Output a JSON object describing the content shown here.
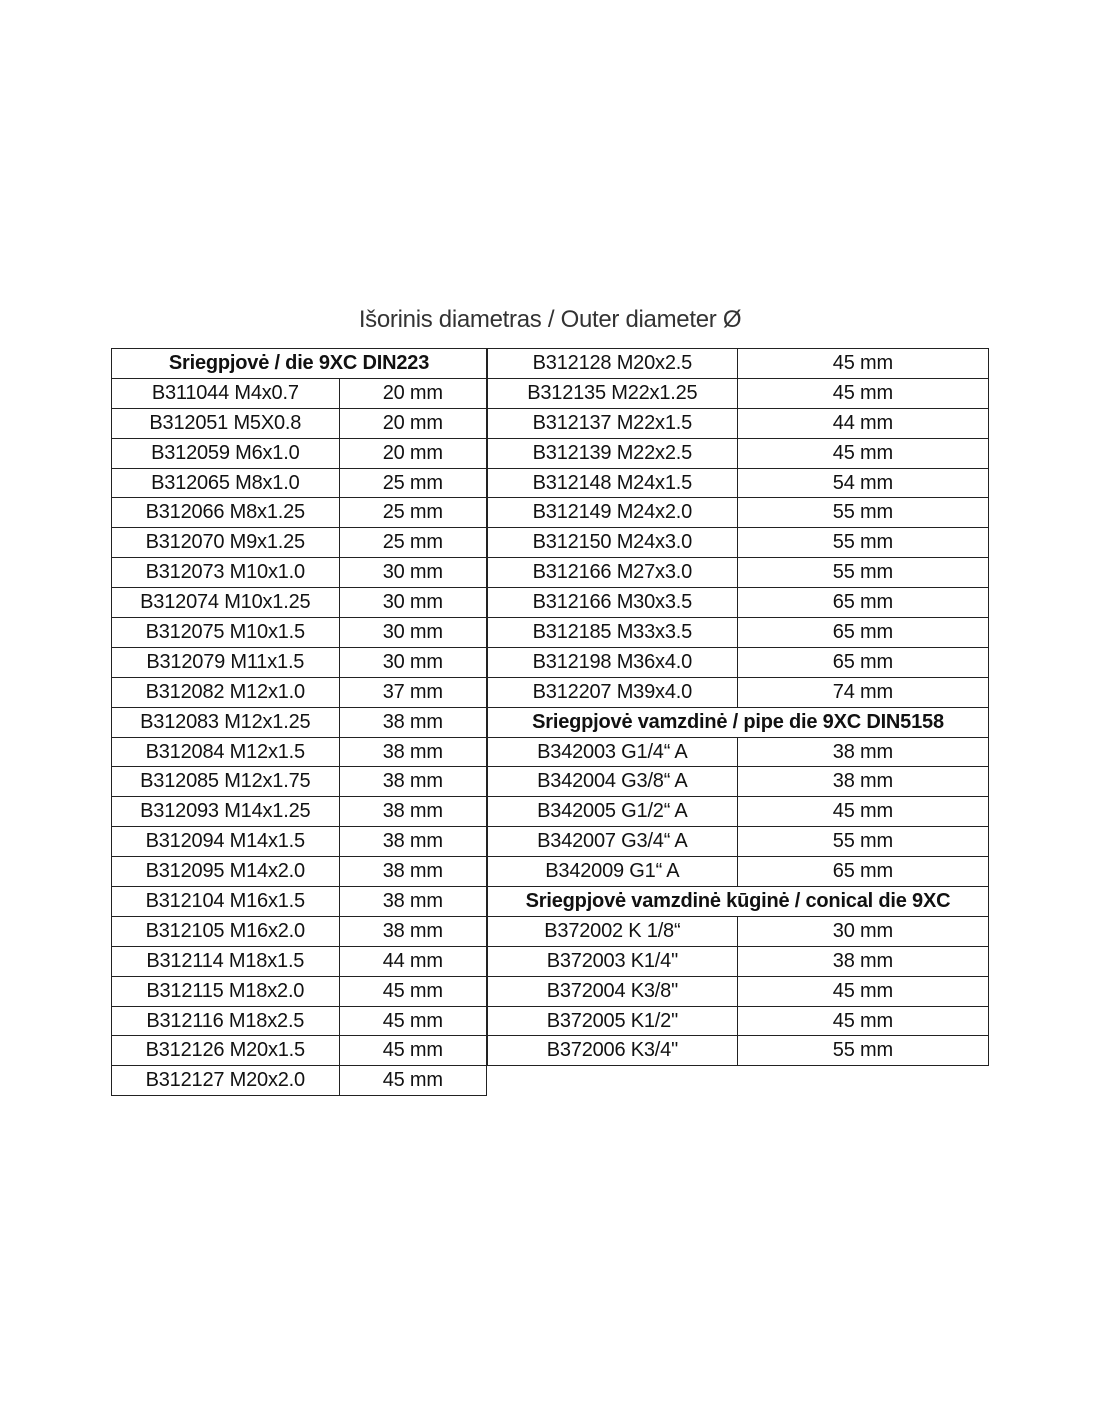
{
  "title": "Išorinis diametras / Outer diameter Ø",
  "left_table": [
    {
      "header": "Sriegpjovė / die 9XC DIN223"
    },
    {
      "code": "B311044 M4x0.7",
      "diameter": "20 mm"
    },
    {
      "code": "B312051 M5X0.8",
      "diameter": "20 mm"
    },
    {
      "code": "B312059 M6x1.0",
      "diameter": "20 mm"
    },
    {
      "code": "B312065 M8x1.0",
      "diameter": "25 mm"
    },
    {
      "code": "B312066 M8x1.25",
      "diameter": "25 mm"
    },
    {
      "code": "B312070 M9x1.25",
      "diameter": "25 mm"
    },
    {
      "code": "B312073 M10x1.0",
      "diameter": "30 mm"
    },
    {
      "code": "B312074 M10x1.25",
      "diameter": "30 mm"
    },
    {
      "code": "B312075 M10x1.5",
      "diameter": "30 mm"
    },
    {
      "code": "B312079 M11x1.5",
      "diameter": "30 mm"
    },
    {
      "code": "B312082 M12x1.0",
      "diameter": "37 mm"
    },
    {
      "code": "B312083 M12x1.25",
      "diameter": "38 mm"
    },
    {
      "code": "B312084 M12x1.5",
      "diameter": "38 mm"
    },
    {
      "code": "B312085 M12x1.75",
      "diameter": "38 mm"
    },
    {
      "code": "B312093 M14x1.25",
      "diameter": "38 mm"
    },
    {
      "code": "B312094 M14x1.5",
      "diameter": "38 mm"
    },
    {
      "code": "B312095 M14x2.0",
      "diameter": "38 mm"
    },
    {
      "code": "B312104 M16x1.5",
      "diameter": "38 mm"
    },
    {
      "code": "B312105 M16x2.0",
      "diameter": "38 mm"
    },
    {
      "code": "B312114 M18x1.5",
      "diameter": "44 mm"
    },
    {
      "code": "B312115 M18x2.0",
      "diameter": "45 mm"
    },
    {
      "code": "B312116 M18x2.5",
      "diameter": "45 mm"
    },
    {
      "code": "B312126 M20x1.5",
      "diameter": "45 mm"
    },
    {
      "code": "B312127 M20x2.0",
      "diameter": "45 mm"
    }
  ],
  "right_table": [
    {
      "code": "B312128 M20x2.5",
      "diameter": "45 mm"
    },
    {
      "code": "B312135 M22x1.25",
      "diameter": "45 mm"
    },
    {
      "code": "B312137 M22x1.5",
      "diameter": "44 mm"
    },
    {
      "code": "B312139 M22x2.5",
      "diameter": "45 mm"
    },
    {
      "code": "B312148 M24x1.5",
      "diameter": "54 mm"
    },
    {
      "code": "B312149 M24x2.0",
      "diameter": "55 mm"
    },
    {
      "code": "B312150 M24x3.0",
      "diameter": "55 mm"
    },
    {
      "code": "B312166 M27x3.0",
      "diameter": "55 mm"
    },
    {
      "code": "B312166 M30x3.5",
      "diameter": "65 mm"
    },
    {
      "code": "B312185 M33x3.5",
      "diameter": "65 mm"
    },
    {
      "code": "B312198 M36x4.0",
      "diameter": "65 mm"
    },
    {
      "code": "B312207 M39x4.0",
      "diameter": "74 mm"
    },
    {
      "header": "Sriegpjovė vamzdinė / pipe die 9XC DIN5158"
    },
    {
      "code": "B342003 G1/4“ A",
      "diameter": "38 mm"
    },
    {
      "code": "B342004 G3/8“ A",
      "diameter": "38 mm"
    },
    {
      "code": "B342005 G1/2“ A",
      "diameter": "45 mm"
    },
    {
      "code": "B342007 G3/4“ A",
      "diameter": "55 mm"
    },
    {
      "code": "B342009 G1“ A",
      "diameter": "65 mm"
    },
    {
      "header": "Sriegpjovė vamzdinė kūginė / conical die 9XC"
    },
    {
      "code": "B372002 K 1/8“",
      "diameter": "30 mm"
    },
    {
      "code": "B372003 K1/4\"",
      "diameter": "38 mm"
    },
    {
      "code": "B372004 K3/8\"",
      "diameter": "45 mm"
    },
    {
      "code": "B372005 K1/2\"",
      "diameter": "45 mm"
    },
    {
      "code": "B372006 K3/4\"",
      "diameter": "55 mm"
    }
  ]
}
